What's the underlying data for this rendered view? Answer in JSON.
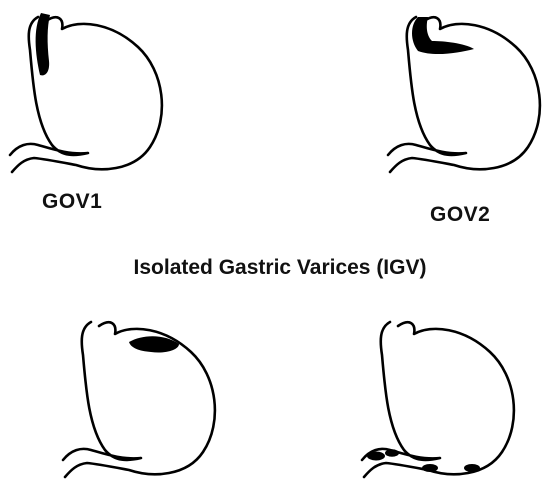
{
  "labels": {
    "gov1": "GOV1",
    "gov2": "GOV2"
  },
  "heading": "Isolated Gastric Varices (IGV)",
  "colors": {
    "stroke": "#000000",
    "varix_fill": "#000000",
    "background": "#ffffff"
  }
}
